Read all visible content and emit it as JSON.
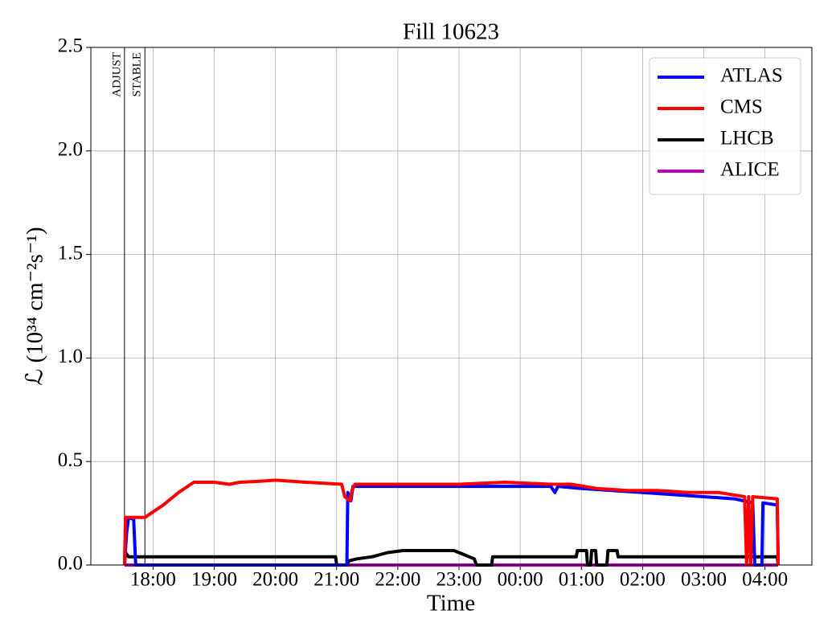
{
  "chart_data": {
    "type": "line",
    "title": "Fill 10623",
    "x_label": "Time",
    "y_label": "ℒ (10³⁴ cm⁻²s⁻¹)",
    "xlim": [
      "16:59",
      "04:46"
    ],
    "xticks": [
      "18:00",
      "19:00",
      "20:00",
      "21:00",
      "22:00",
      "23:00",
      "00:00",
      "01:00",
      "02:00",
      "03:00",
      "04:00"
    ],
    "ylim": [
      0,
      2.5
    ],
    "yticks": [
      {
        "value": 0,
        "label": "0.0"
      },
      {
        "value": 0.5,
        "label": "0.5"
      },
      {
        "value": 1,
        "label": "1.0"
      },
      {
        "value": 1.5,
        "label": "1.5"
      },
      {
        "value": 2,
        "label": "2.0"
      },
      {
        "value": 2.5,
        "label": "2.5"
      }
    ],
    "grid": true,
    "legend": "upper right",
    "annotations": [
      {
        "text": "ADJUST",
        "x": "17:32"
      },
      {
        "text": "STABLE",
        "x": "17:52"
      }
    ],
    "series": [
      {
        "name": "ATLAS",
        "color": "#0000ff",
        "x": [
          "17:32",
          "17:34",
          "17:36",
          "17:41",
          "17:43",
          "21:10",
          "21:11",
          "21:14",
          "21:16",
          "22:00",
          "23:00",
          "00:00",
          "00:30",
          "00:34",
          "00:37",
          "01:00",
          "01:30",
          "02:00",
          "02:30",
          "03:00",
          "03:30",
          "03:48",
          "03:50",
          "03:57",
          "03:58",
          "04:12",
          "04:13"
        ],
        "values": [
          0,
          0.15,
          0.23,
          0.22,
          0,
          0,
          0.35,
          0.31,
          0.38,
          0.38,
          0.38,
          0.38,
          0.38,
          0.35,
          0.38,
          0.37,
          0.36,
          0.35,
          0.34,
          0.33,
          0.32,
          0.3,
          0,
          0,
          0.3,
          0.29,
          0
        ]
      },
      {
        "name": "CMS",
        "color": "#ff0000",
        "x": [
          "17:32",
          "17:33",
          "17:52",
          "18:10",
          "18:25",
          "18:40",
          "19:00",
          "19:15",
          "19:25",
          "19:45",
          "20:00",
          "20:30",
          "21:05",
          "21:08",
          "21:13",
          "21:15",
          "21:18",
          "22:00",
          "23:00",
          "23:45",
          "00:30",
          "00:50",
          "01:15",
          "01:45",
          "02:15",
          "02:45",
          "03:15",
          "03:40",
          "03:42",
          "03:44",
          "03:46",
          "03:48",
          "04:12",
          "04:13"
        ],
        "values": [
          0,
          0.23,
          0.23,
          0.29,
          0.35,
          0.4,
          0.4,
          0.39,
          0.4,
          0.405,
          0.41,
          0.4,
          0.39,
          0.33,
          0.31,
          0.36,
          0.39,
          0.39,
          0.39,
          0.4,
          0.39,
          0.39,
          0.37,
          0.36,
          0.36,
          0.35,
          0.35,
          0.33,
          0,
          0.33,
          0,
          0.33,
          0.32,
          0
        ]
      },
      {
        "name": "LHCB",
        "color": "#000000",
        "x": [
          "17:32",
          "17:33",
          "17:36",
          "20:59",
          "21:00",
          "21:10",
          "21:12",
          "21:20",
          "21:35",
          "21:50",
          "22:05",
          "22:55",
          "23:05",
          "23:15",
          "23:17",
          "23:32",
          "23:33",
          "00:55",
          "00:56",
          "01:05",
          "01:06",
          "01:09",
          "01:10",
          "01:14",
          "01:15",
          "01:25",
          "01:26",
          "01:35",
          "01:36",
          "04:12",
          "04:13"
        ],
        "values": [
          0,
          0.06,
          0.04,
          0.04,
          0,
          0,
          0.02,
          0.03,
          0.04,
          0.06,
          0.07,
          0.07,
          0.05,
          0.03,
          0,
          0,
          0.04,
          0.04,
          0.07,
          0.07,
          0,
          0,
          0.07,
          0.07,
          0,
          0,
          0.07,
          0.07,
          0.04,
          0.04,
          0
        ]
      },
      {
        "name": "ALICE",
        "color": "#bf00bf",
        "x": [
          "17:32",
          "04:13"
        ],
        "values": [
          0,
          0
        ]
      }
    ]
  }
}
